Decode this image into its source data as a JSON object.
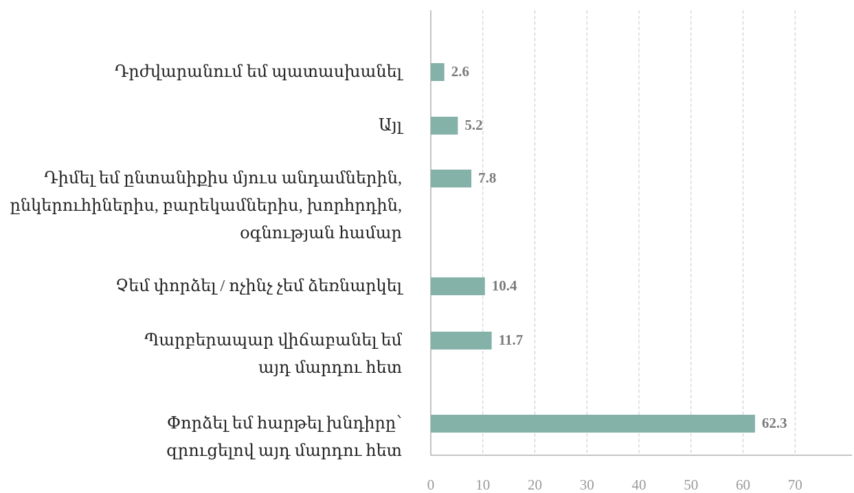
{
  "chart_data": {
    "type": "barh",
    "categories": [
      "Դրժվարանում եմ պատասխանել",
      "Այլ",
      "Դիմել եմ ընտանիքիս մյուս անդամներին,\nընկերուհիներիս, բարեկամներիս, խորհրդին,\nօգնության համար",
      "Չեմ փորձել / ոչինչ չեմ ձեռնարկել",
      "Պարբերապար վիճաբանել եմ\nայդ մարդու հետ",
      "Փորձել եմ հարթել խնդիրը՝\nզրուցելով այդ մարդու հետ"
    ],
    "values": [
      2.6,
      5.2,
      7.8,
      10.4,
      11.7,
      62.3
    ],
    "color": "#84b1a8",
    "xlim": [
      0,
      80
    ],
    "xticks": [
      0,
      10,
      20,
      30,
      40,
      50,
      60,
      70
    ],
    "grid": true
  }
}
